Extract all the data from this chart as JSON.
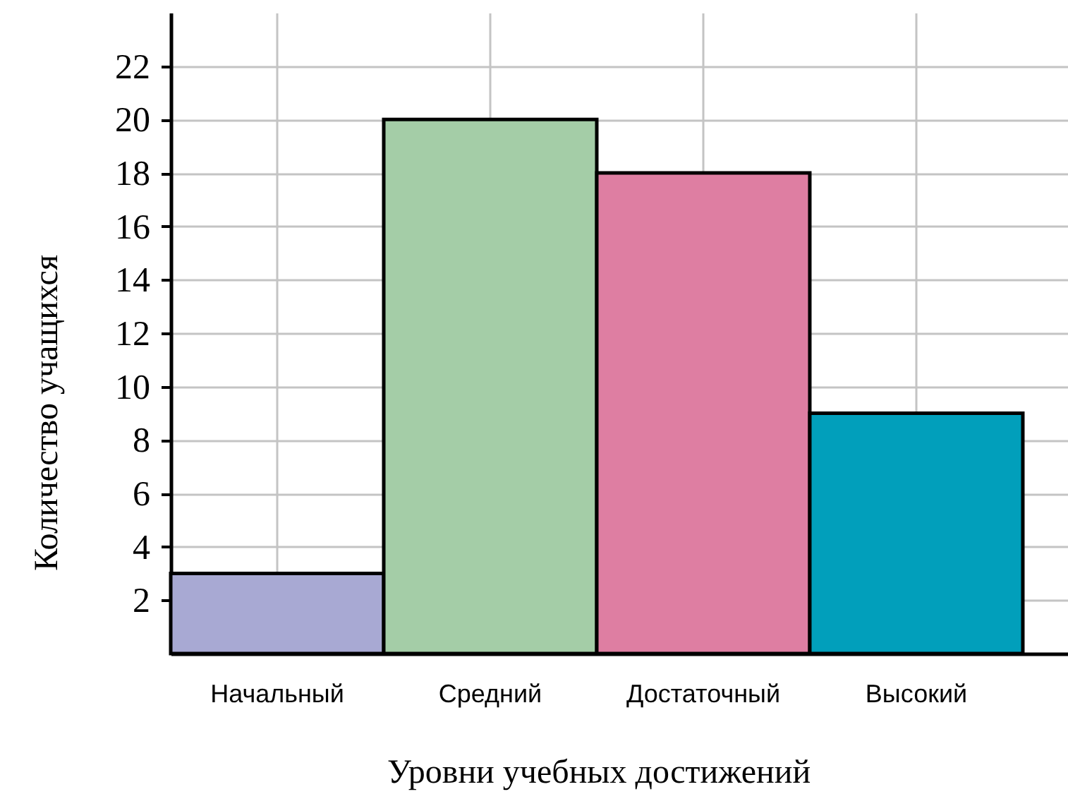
{
  "chart_data": {
    "type": "bar",
    "xlabel": "Уровни учебных достижений",
    "ylabel": "Количество учащихся",
    "categories": [
      "Начальный",
      "Средний",
      "Достаточный",
      "Высокий"
    ],
    "values": [
      3,
      20,
      18,
      9
    ],
    "colors": [
      "#a8a9d3",
      "#a4cda7",
      "#de7ea2",
      "#019fbb"
    ],
    "ylim": [
      0,
      24
    ],
    "yticks": [
      2,
      4,
      6,
      8,
      10,
      12,
      14,
      16,
      18,
      20,
      22
    ],
    "grid": true
  }
}
